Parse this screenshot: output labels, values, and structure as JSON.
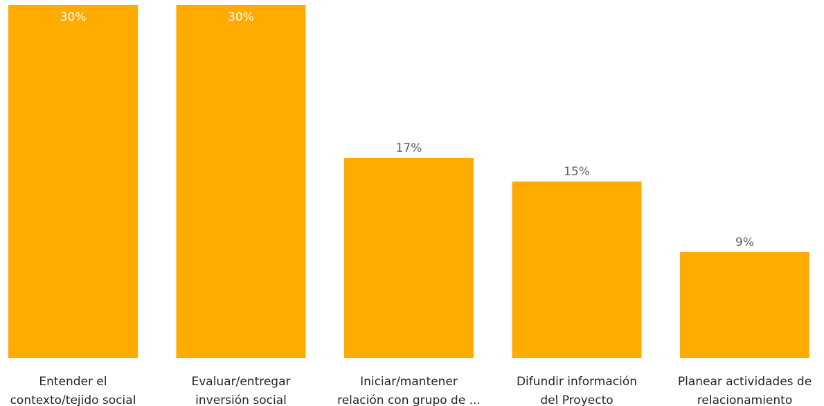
{
  "chart_data": {
    "type": "bar",
    "categories": [
      [
        "Entender el",
        "contexto/tejido social"
      ],
      [
        "Evaluar/entregar",
        "inversión social"
      ],
      [
        "Iniciar/mantener",
        "relación con grupo de ..."
      ],
      [
        "Difundir información",
        "del Proyecto"
      ],
      [
        "Planear actividades de",
        "relacionamiento"
      ]
    ],
    "values": [
      30,
      30,
      17,
      15,
      9
    ],
    "value_labels": [
      "30%",
      "30%",
      "17%",
      "15%",
      "9%"
    ],
    "value_unit": "%",
    "ylim": [
      0,
      30
    ],
    "grid": false,
    "legend": "none",
    "colors": {
      "bar": "#FFAB00",
      "label_inside": "#FFFFFF",
      "label_outside": "#605E5C",
      "category_text": "#252423"
    }
  }
}
